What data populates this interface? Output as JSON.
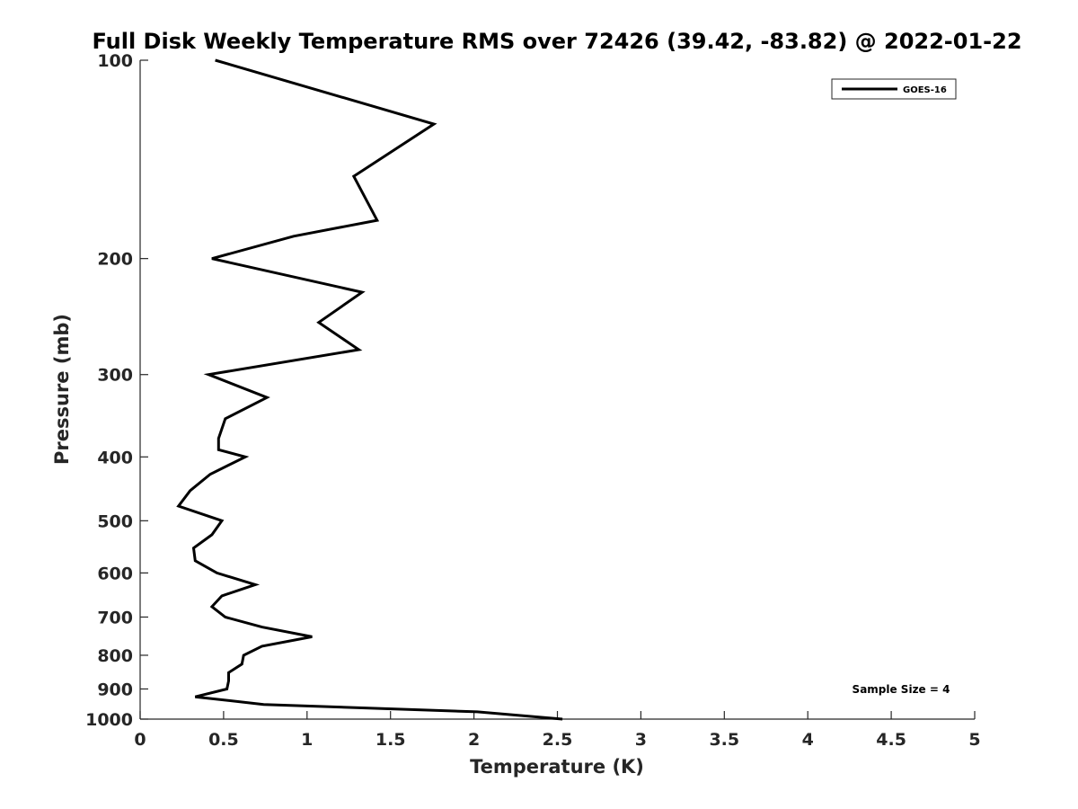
{
  "chart_data": {
    "type": "line",
    "title": "Full Disk Weekly Temperature RMS over 72426 (39.42, -83.82) @ 2022-01-22",
    "xlabel": "Temperature (K)",
    "ylabel": "Pressure (mb)",
    "xlim": [
      0,
      5
    ],
    "ylim": [
      100,
      1000
    ],
    "y_scale": "log",
    "y_reversed": true,
    "grid": false,
    "legend_position": "top-right",
    "x_ticks": [
      "0",
      "0.5",
      "1",
      "1.5",
      "2",
      "2.5",
      "3",
      "3.5",
      "4",
      "4.5",
      "5"
    ],
    "y_ticks": [
      "100",
      "200",
      "300",
      "400",
      "500",
      "600",
      "700",
      "800",
      "900",
      "1000"
    ],
    "series": [
      {
        "name": "GOES-16",
        "color": "#000000",
        "points": [
          {
            "x": 0.45,
            "y": 100
          },
          {
            "x": 1.76,
            "y": 125
          },
          {
            "x": 1.28,
            "y": 150
          },
          {
            "x": 1.42,
            "y": 175
          },
          {
            "x": 0.92,
            "y": 185
          },
          {
            "x": 0.43,
            "y": 200
          },
          {
            "x": 1.33,
            "y": 225
          },
          {
            "x": 1.07,
            "y": 250
          },
          {
            "x": 1.31,
            "y": 275
          },
          {
            "x": 0.41,
            "y": 300
          },
          {
            "x": 0.76,
            "y": 325
          },
          {
            "x": 0.51,
            "y": 350
          },
          {
            "x": 0.47,
            "y": 375
          },
          {
            "x": 0.47,
            "y": 390
          },
          {
            "x": 0.63,
            "y": 400
          },
          {
            "x": 0.42,
            "y": 425
          },
          {
            "x": 0.3,
            "y": 450
          },
          {
            "x": 0.23,
            "y": 475
          },
          {
            "x": 0.49,
            "y": 500
          },
          {
            "x": 0.43,
            "y": 525
          },
          {
            "x": 0.32,
            "y": 550
          },
          {
            "x": 0.33,
            "y": 575
          },
          {
            "x": 0.46,
            "y": 600
          },
          {
            "x": 0.69,
            "y": 625
          },
          {
            "x": 0.49,
            "y": 650
          },
          {
            "x": 0.43,
            "y": 675
          },
          {
            "x": 0.51,
            "y": 700
          },
          {
            "x": 0.73,
            "y": 725
          },
          {
            "x": 1.03,
            "y": 750
          },
          {
            "x": 0.73,
            "y": 775
          },
          {
            "x": 0.62,
            "y": 800
          },
          {
            "x": 0.61,
            "y": 825
          },
          {
            "x": 0.53,
            "y": 850
          },
          {
            "x": 0.53,
            "y": 875
          },
          {
            "x": 0.52,
            "y": 900
          },
          {
            "x": 0.33,
            "y": 925
          },
          {
            "x": 0.74,
            "y": 950
          },
          {
            "x": 2.02,
            "y": 975
          },
          {
            "x": 2.53,
            "y": 1000
          }
        ]
      }
    ],
    "legend": [
      {
        "label": "GOES-16",
        "color": "#000000"
      }
    ],
    "annotation": "Sample Size = 4"
  }
}
